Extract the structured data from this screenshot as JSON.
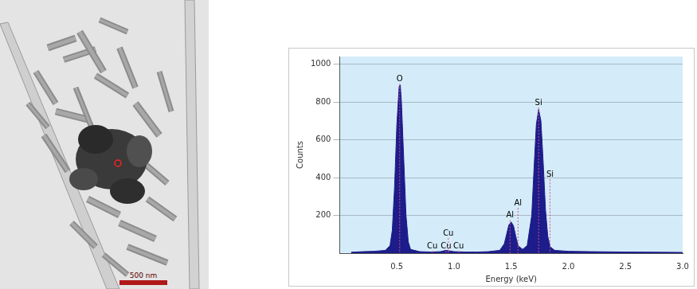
{
  "micrograph": {
    "scale_bar": "500 nm"
  },
  "chart_data": {
    "type": "area",
    "x_label": "Energy (keV)",
    "y_label": "Counts",
    "x": [
      0.1,
      0.2,
      0.3,
      0.4,
      0.44,
      0.46,
      0.48,
      0.5,
      0.52,
      0.53,
      0.54,
      0.56,
      0.58,
      0.6,
      0.62,
      0.7,
      0.8,
      0.88,
      0.93,
      0.96,
      1.0,
      1.1,
      1.2,
      1.3,
      1.4,
      1.44,
      1.46,
      1.48,
      1.5,
      1.52,
      1.54,
      1.56,
      1.6,
      1.64,
      1.68,
      1.7,
      1.72,
      1.74,
      1.76,
      1.78,
      1.8,
      1.82,
      1.84,
      1.88,
      2.0,
      2.2,
      2.5,
      2.8,
      3.0
    ],
    "values": [
      5,
      8,
      10,
      15,
      40,
      120,
      350,
      680,
      880,
      890,
      800,
      500,
      200,
      60,
      20,
      8,
      6,
      8,
      15,
      12,
      8,
      6,
      6,
      8,
      15,
      50,
      100,
      150,
      165,
      145,
      90,
      40,
      20,
      40,
      200,
      450,
      680,
      760,
      700,
      480,
      230,
      90,
      35,
      15,
      10,
      8,
      6,
      5,
      4
    ],
    "color": "#1c1c8a",
    "xlim": [
      0,
      3.0
    ],
    "xticks": [
      0.5,
      {
        "value": 1,
        "label": "1.0"
      },
      1.5,
      {
        "value": 2,
        "label": "2.0"
      },
      2.5,
      {
        "value": 3,
        "label": "3.0"
      }
    ],
    "ylim": [
      0,
      1040
    ],
    "yticks": [
      200,
      400,
      600,
      800,
      1000
    ],
    "grid": true,
    "annotations": [
      {
        "text": "O",
        "x": 0.525,
        "y": 895
      },
      {
        "text": "Cu",
        "x": 0.81,
        "y": 12
      },
      {
        "text": "Cu",
        "x": 0.93,
        "y": 12
      },
      {
        "text": "Cu",
        "x": 1.04,
        "y": 12
      },
      {
        "text": "Cu",
        "x": 0.95,
        "y": 80
      },
      {
        "text": "Al",
        "x": 1.49,
        "y": 175
      },
      {
        "text": "Al",
        "x": 1.56,
        "y": 240
      },
      {
        "text": "Si",
        "x": 1.74,
        "y": 770
      },
      {
        "text": "Si",
        "x": 1.84,
        "y": 390
      }
    ]
  }
}
